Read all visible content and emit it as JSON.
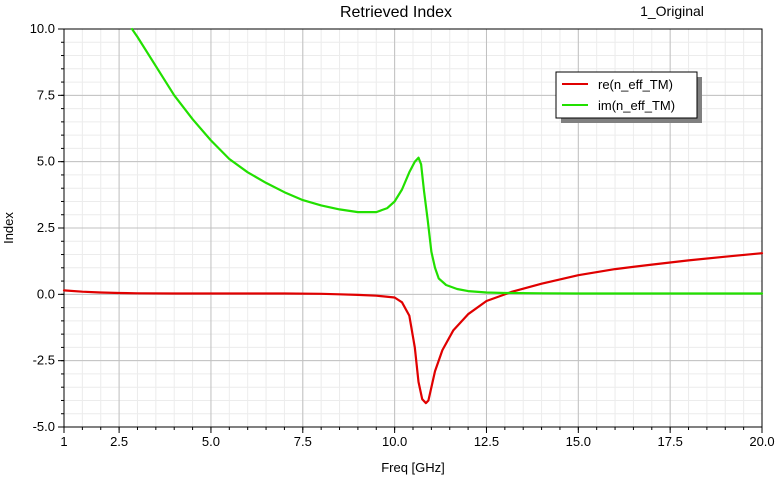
{
  "chart_data": {
    "type": "line",
    "title": "Retrieved Index",
    "corner_label": "1_Original",
    "xlabel": "Freq [GHz]",
    "ylabel": "Index",
    "xlim": [
      1,
      20
    ],
    "ylim": [
      -5,
      10
    ],
    "xticks": [
      "1",
      "2.5",
      "5.0",
      "7.5",
      "10.0",
      "12.5",
      "15.0",
      "17.5",
      "20.0"
    ],
    "yticks": [
      "10.0",
      "7.5",
      "5.0",
      "2.5",
      "0.0",
      "-2.5",
      "-5.0"
    ],
    "grid": true,
    "legend_position": "top-right",
    "series": [
      {
        "name": "re(n_eff_TM)",
        "color": "#e00000",
        "x": [
          1.0,
          1.5,
          2.0,
          2.5,
          3.0,
          4.0,
          5.0,
          6.0,
          7.0,
          8.0,
          8.5,
          9.0,
          9.5,
          10.0,
          10.2,
          10.4,
          10.55,
          10.65,
          10.75,
          10.85,
          10.92,
          11.0,
          11.1,
          11.3,
          11.6,
          12.0,
          12.5,
          13.2,
          14.0,
          15.0,
          16.0,
          17.0,
          18.0,
          19.0,
          20.0
        ],
        "y": [
          0.15,
          0.1,
          0.07,
          0.05,
          0.04,
          0.03,
          0.03,
          0.03,
          0.03,
          0.02,
          0.0,
          -0.02,
          -0.05,
          -0.12,
          -0.3,
          -0.8,
          -2.0,
          -3.3,
          -3.95,
          -4.1,
          -4.0,
          -3.5,
          -2.9,
          -2.1,
          -1.35,
          -0.75,
          -0.25,
          0.1,
          0.4,
          0.72,
          0.95,
          1.12,
          1.28,
          1.42,
          1.55
        ]
      },
      {
        "name": "im(n_eff_TM)",
        "color": "#22e000",
        "x": [
          2.85,
          3.0,
          3.5,
          4.0,
          4.5,
          5.0,
          5.5,
          6.0,
          6.5,
          7.0,
          7.5,
          8.0,
          8.5,
          9.0,
          9.5,
          9.8,
          10.0,
          10.2,
          10.4,
          10.55,
          10.65,
          10.72,
          10.8,
          10.9,
          11.0,
          11.1,
          11.2,
          11.4,
          11.7,
          12.0,
          12.5,
          13.0,
          14.0,
          15.0,
          17.0,
          20.0
        ],
        "y": [
          10.0,
          9.7,
          8.6,
          7.5,
          6.6,
          5.8,
          5.1,
          4.6,
          4.2,
          3.85,
          3.55,
          3.35,
          3.2,
          3.1,
          3.1,
          3.25,
          3.5,
          3.95,
          4.6,
          5.0,
          5.15,
          4.9,
          3.9,
          2.8,
          1.6,
          1.0,
          0.6,
          0.35,
          0.2,
          0.12,
          0.07,
          0.05,
          0.04,
          0.03,
          0.03,
          0.03
        ]
      }
    ]
  }
}
